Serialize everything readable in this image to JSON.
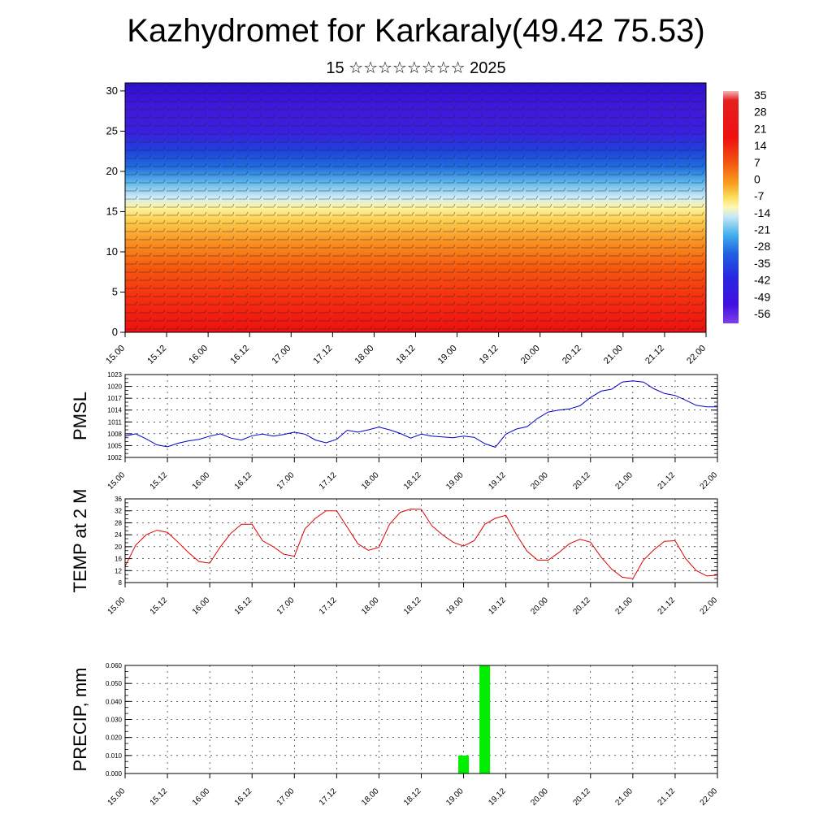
{
  "header": {
    "title": "Kazhydromet for Karkaraly(49.42 75.53)",
    "subtitle": "15 ☆☆☆☆☆☆☆☆ 2025"
  },
  "time_ticks": [
    "15.00",
    "15.12",
    "16.00",
    "16.12",
    "17.00",
    "17.12",
    "18.00",
    "18.12",
    "19.00",
    "19.12",
    "20.00",
    "20.12",
    "21.00",
    "21.12",
    "22.00"
  ],
  "chart_data": [
    {
      "type": "heatmap",
      "name_key": "vertical-section",
      "title": "",
      "xlabel": "",
      "ylabel": "",
      "x_categories": [
        "15.00",
        "15.12",
        "16.00",
        "16.12",
        "17.00",
        "17.12",
        "18.00",
        "18.12",
        "19.00",
        "19.12",
        "20.00",
        "20.12",
        "21.00",
        "21.12",
        "22.00"
      ],
      "ylim": [
        0,
        31
      ],
      "y_ticks": [
        0,
        5,
        10,
        15,
        20,
        25,
        30
      ],
      "colorbar": {
        "labels": [
          "35",
          "28",
          "21",
          "14",
          "7",
          "0",
          "-7",
          "-14",
          "-21",
          "-28",
          "-35",
          "-42",
          "-49",
          "-56"
        ],
        "range": [
          -63,
          42
        ]
      },
      "temperature_profile": [
        {
          "level": 0,
          "value": 28
        },
        {
          "level": 5,
          "value": 20
        },
        {
          "level": 10,
          "value": 10
        },
        {
          "level": 15,
          "value": -4
        },
        {
          "level": 17,
          "value": -13
        },
        {
          "level": 20,
          "value": -30
        },
        {
          "level": 25,
          "value": -50
        },
        {
          "level": 30,
          "value": -58
        }
      ],
      "overlay": "wind barbs"
    },
    {
      "type": "line",
      "ylabel": "PMSL",
      "ylim": [
        1002,
        1023
      ],
      "y_ticks": [
        1002,
        1005,
        1008,
        1011,
        1014,
        1017,
        1020,
        1023
      ],
      "x_categories": [
        "15.00",
        "15.12",
        "16.00",
        "16.12",
        "17.00",
        "17.12",
        "18.00",
        "18.12",
        "19.00",
        "19.12",
        "20.00",
        "20.12",
        "21.00",
        "21.12",
        "22.00"
      ],
      "color": "#0000cc",
      "x": [
        0,
        0.25,
        0.5,
        0.75,
        1,
        1.25,
        1.5,
        1.75,
        2,
        2.25,
        2.5,
        2.75,
        3,
        3.25,
        3.5,
        3.75,
        4,
        4.25,
        4.5,
        4.75,
        5,
        5.25,
        5.5,
        5.75,
        6,
        6.25,
        6.5,
        6.75,
        7,
        7.25,
        7.5,
        7.75,
        8,
        8.25,
        8.5,
        8.75,
        9,
        9.25,
        9.5,
        9.75,
        10,
        10.25,
        10.5,
        10.75,
        11,
        11.25,
        11.5,
        11.75,
        12,
        12.25,
        12.5,
        12.75,
        13,
        13.25,
        13.5,
        13.75,
        14
      ],
      "values": [
        1007.4,
        1008.0,
        1006.7,
        1005.2,
        1004.7,
        1005.6,
        1006.2,
        1006.6,
        1007.4,
        1008.0,
        1006.9,
        1006.4,
        1007.5,
        1007.9,
        1007.4,
        1007.8,
        1008.4,
        1007.9,
        1006.4,
        1005.7,
        1006.6,
        1008.9,
        1008.4,
        1009.0,
        1009.7,
        1009.0,
        1008.1,
        1006.9,
        1007.9,
        1007.4,
        1007.2,
        1007.0,
        1007.4,
        1007.1,
        1005.5,
        1004.6,
        1007.9,
        1009.2,
        1009.8,
        1011.9,
        1013.5,
        1014.0,
        1014.3,
        1015.1,
        1017.2,
        1018.8,
        1019.3,
        1021.1,
        1021.4,
        1021.1,
        1019.4,
        1018.2,
        1017.7,
        1016.5,
        1015.2,
        1014.8,
        1014.8
      ]
    },
    {
      "type": "line",
      "ylabel": "TEMP at 2 M",
      "ylim": [
        8,
        36
      ],
      "y_ticks": [
        8,
        12,
        16,
        20,
        24,
        28,
        32,
        36
      ],
      "x_categories": [
        "15.00",
        "15.12",
        "16.00",
        "16.12",
        "17.00",
        "17.12",
        "18.00",
        "18.12",
        "19.00",
        "19.12",
        "20.00",
        "20.12",
        "21.00",
        "21.12",
        "22.00"
      ],
      "color": "#dd0000",
      "x": [
        0,
        0.25,
        0.5,
        0.75,
        1,
        1.25,
        1.5,
        1.75,
        2,
        2.25,
        2.5,
        2.75,
        3,
        3.25,
        3.5,
        3.75,
        4,
        4.25,
        4.5,
        4.75,
        5,
        5.25,
        5.5,
        5.75,
        6,
        6.25,
        6.5,
        6.75,
        7,
        7.25,
        7.5,
        7.75,
        8,
        8.25,
        8.5,
        8.75,
        9,
        9.25,
        9.5,
        9.75,
        10,
        10.25,
        10.5,
        10.75,
        11,
        11.25,
        11.5,
        11.75,
        12,
        12.25,
        12.5,
        12.75,
        13,
        13.25,
        13.5,
        13.75,
        14
      ],
      "values": [
        13.5,
        20.5,
        24.0,
        25.5,
        24.8,
        21.5,
        18.0,
        15.0,
        14.5,
        20.0,
        24.5,
        27.5,
        27.5,
        22.0,
        20.0,
        17.5,
        16.8,
        26.0,
        29.5,
        32.0,
        32.0,
        26.5,
        21.0,
        18.8,
        19.8,
        27.5,
        31.5,
        32.6,
        32.5,
        27.0,
        24.0,
        21.5,
        20.2,
        22.0,
        27.5,
        29.5,
        30.5,
        24.0,
        18.5,
        15.5,
        15.5,
        18.0,
        21.0,
        22.5,
        21.5,
        16.5,
        12.5,
        9.8,
        9.3,
        15.5,
        19.0,
        21.8,
        22.0,
        16.0,
        12.0,
        10.2,
        10.5
      ]
    },
    {
      "type": "bar",
      "ylabel": "PRECIP, mm",
      "ylim": [
        0,
        0.06
      ],
      "y_ticks": [
        "0.000",
        "0.010",
        "0.020",
        "0.030",
        "0.040",
        "0.050",
        "0.060"
      ],
      "x_categories": [
        "15.00",
        "15.12",
        "16.00",
        "16.12",
        "17.00",
        "17.12",
        "18.00",
        "18.12",
        "19.00",
        "19.12",
        "20.00",
        "20.12",
        "21.00",
        "21.12",
        "22.00"
      ],
      "color": "#00ee00",
      "bars": [
        {
          "x": 8.0,
          "value": 0.01
        },
        {
          "x": 8.5,
          "value": 0.06
        }
      ]
    }
  ]
}
